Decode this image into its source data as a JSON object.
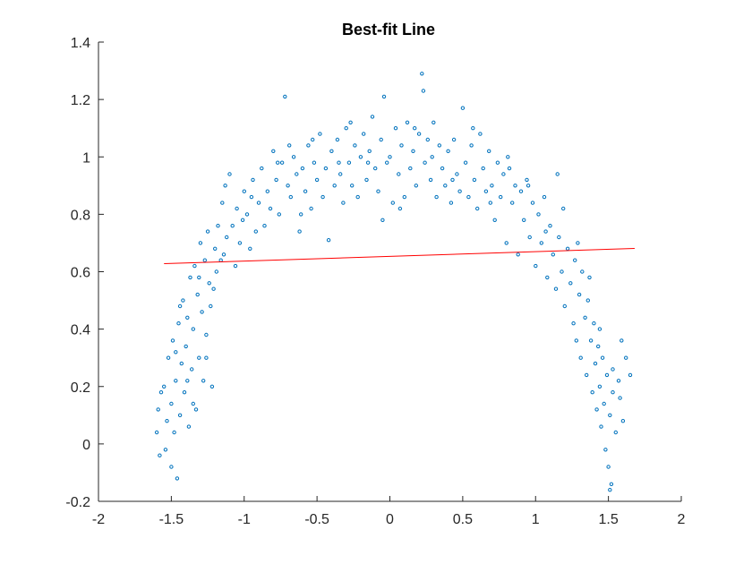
{
  "chart_data": {
    "type": "scatter",
    "title": "Best-fit Line",
    "xlabel": "",
    "ylabel": "",
    "xlim": [
      -2,
      2
    ],
    "ylim": [
      -0.2,
      1.4
    ],
    "x_ticks": [
      -2,
      -1.5,
      -1,
      -0.5,
      0,
      0.5,
      1,
      1.5,
      2
    ],
    "x_tick_labels": [
      "-2",
      "-1.5",
      "-1",
      "-0.5",
      "0",
      "0.5",
      "1",
      "1.5",
      "2"
    ],
    "y_ticks": [
      -0.2,
      0,
      0.2,
      0.4,
      0.6,
      0.8,
      1,
      1.2,
      1.4
    ],
    "y_tick_labels": [
      "-0.2",
      "0",
      "0.2",
      "0.4",
      "0.6",
      "0.8",
      "1",
      "1.2",
      "1.4"
    ],
    "grid": false,
    "legend": "none",
    "scatter_color": "#0072BD",
    "line_color": "#FF0000",
    "series": [
      {
        "type": "scatter",
        "points": [
          [
            -1.6,
            0.04
          ],
          [
            -1.59,
            0.12
          ],
          [
            -1.58,
            -0.04
          ],
          [
            -1.55,
            0.2
          ],
          [
            -1.53,
            0.08
          ],
          [
            -1.52,
            0.3
          ],
          [
            -1.5,
            -0.08
          ],
          [
            -1.5,
            0.14
          ],
          [
            -1.49,
            0.36
          ],
          [
            -1.48,
            0.04
          ],
          [
            -1.47,
            0.22
          ],
          [
            -1.46,
            -0.12
          ],
          [
            -1.45,
            0.42
          ],
          [
            -1.44,
            0.1
          ],
          [
            -1.43,
            0.28
          ],
          [
            -1.42,
            0.5
          ],
          [
            -1.41,
            0.18
          ],
          [
            -1.4,
            0.34
          ],
          [
            -1.39,
            0.44
          ],
          [
            -1.38,
            0.06
          ],
          [
            -1.37,
            0.58
          ],
          [
            -1.36,
            0.26
          ],
          [
            -1.35,
            0.4
          ],
          [
            -1.34,
            0.62
          ],
          [
            -1.33,
            0.12
          ],
          [
            -1.32,
            0.52
          ],
          [
            -1.31,
            0.3
          ],
          [
            -1.3,
            0.7
          ],
          [
            -1.29,
            0.46
          ],
          [
            -1.28,
            0.22
          ],
          [
            -1.27,
            0.64
          ],
          [
            -1.26,
            0.38
          ],
          [
            -1.25,
            0.74
          ],
          [
            -1.24,
            0.56
          ],
          [
            -1.23,
            0.48
          ],
          [
            -1.22,
            0.2
          ],
          [
            -1.2,
            0.68
          ],
          [
            -1.19,
            0.6
          ],
          [
            -1.18,
            0.76
          ],
          [
            -1.16,
            0.64
          ],
          [
            -1.15,
            0.84
          ],
          [
            -1.14,
            0.66
          ],
          [
            -1.12,
            0.72
          ],
          [
            -1.1,
            0.94
          ],
          [
            -1.08,
            0.76
          ],
          [
            -1.06,
            0.62
          ],
          [
            -1.05,
            0.82
          ],
          [
            -1.03,
            0.7
          ],
          [
            -1.01,
            0.78
          ],
          [
            -1.0,
            0.88
          ],
          [
            -0.98,
            0.8
          ],
          [
            -0.96,
            0.68
          ],
          [
            -0.94,
            0.92
          ],
          [
            -0.92,
            0.74
          ],
          [
            -0.9,
            0.84
          ],
          [
            -0.88,
            0.96
          ],
          [
            -0.86,
            0.76
          ],
          [
            -0.84,
            0.88
          ],
          [
            -0.82,
            0.82
          ],
          [
            -0.8,
            1.02
          ],
          [
            -0.78,
            0.92
          ],
          [
            -0.76,
            0.8
          ],
          [
            -0.74,
            0.98
          ],
          [
            -0.72,
            1.21
          ],
          [
            -0.7,
            0.9
          ],
          [
            -0.68,
            0.86
          ],
          [
            -0.66,
            1.0
          ],
          [
            -0.64,
            0.94
          ],
          [
            -0.62,
            0.74
          ],
          [
            -0.6,
            0.96
          ],
          [
            -0.58,
            0.88
          ],
          [
            -0.56,
            1.04
          ],
          [
            -0.54,
            0.82
          ],
          [
            -0.52,
            0.98
          ],
          [
            -0.5,
            0.92
          ],
          [
            -0.48,
            1.08
          ],
          [
            -0.46,
            0.86
          ],
          [
            -0.44,
            0.96
          ],
          [
            -0.42,
            0.71
          ],
          [
            -0.4,
            1.02
          ],
          [
            -0.38,
            0.9
          ],
          [
            -0.36,
            1.06
          ],
          [
            -0.34,
            0.94
          ],
          [
            -0.32,
            0.84
          ],
          [
            -0.3,
            1.1
          ],
          [
            -0.28,
            0.98
          ],
          [
            -0.26,
            0.9
          ],
          [
            -0.24,
            1.04
          ],
          [
            -0.22,
            0.86
          ],
          [
            -0.2,
            1.0
          ],
          [
            -0.18,
            1.08
          ],
          [
            -0.16,
            0.92
          ],
          [
            -0.14,
            1.02
          ],
          [
            -0.12,
            1.14
          ],
          [
            -0.1,
            0.96
          ],
          [
            -0.08,
            0.88
          ],
          [
            -0.06,
            1.06
          ],
          [
            -0.04,
            1.21
          ],
          [
            -0.02,
            0.98
          ],
          [
            0.0,
            1.0
          ],
          [
            0.02,
            0.84
          ],
          [
            0.04,
            1.1
          ],
          [
            0.06,
            0.94
          ],
          [
            0.08,
            1.04
          ],
          [
            0.1,
            0.86
          ],
          [
            0.12,
            1.12
          ],
          [
            0.14,
            0.96
          ],
          [
            0.16,
            1.02
          ],
          [
            0.18,
            0.9
          ],
          [
            0.2,
            1.08
          ],
          [
            0.22,
            1.29
          ],
          [
            0.23,
            1.23
          ],
          [
            0.24,
            0.98
          ],
          [
            0.26,
            1.06
          ],
          [
            0.28,
            0.92
          ],
          [
            0.3,
            1.12
          ],
          [
            0.32,
            0.86
          ],
          [
            0.34,
            1.04
          ],
          [
            0.36,
            0.96
          ],
          [
            0.38,
            0.9
          ],
          [
            0.4,
            1.02
          ],
          [
            0.42,
            0.84
          ],
          [
            0.44,
            1.06
          ],
          [
            0.46,
            0.94
          ],
          [
            0.48,
            0.88
          ],
          [
            0.5,
            1.17
          ],
          [
            0.52,
            0.98
          ],
          [
            0.54,
            0.86
          ],
          [
            0.56,
            1.04
          ],
          [
            0.58,
            0.92
          ],
          [
            0.6,
            0.82
          ],
          [
            0.62,
            1.08
          ],
          [
            0.64,
            0.96
          ],
          [
            0.66,
            0.88
          ],
          [
            0.68,
            1.02
          ],
          [
            0.7,
            0.9
          ],
          [
            0.72,
            0.78
          ],
          [
            0.74,
            0.98
          ],
          [
            0.76,
            0.86
          ],
          [
            0.78,
            0.94
          ],
          [
            0.8,
            0.7
          ],
          [
            0.82,
            0.96
          ],
          [
            0.84,
            0.84
          ],
          [
            0.86,
            0.9
          ],
          [
            0.88,
            0.66
          ],
          [
            0.9,
            0.88
          ],
          [
            0.92,
            0.78
          ],
          [
            0.94,
            0.92
          ],
          [
            0.96,
            0.72
          ],
          [
            0.98,
            0.84
          ],
          [
            1.0,
            0.62
          ],
          [
            1.02,
            0.8
          ],
          [
            1.04,
            0.7
          ],
          [
            1.06,
            0.86
          ],
          [
            1.08,
            0.58
          ],
          [
            1.1,
            0.76
          ],
          [
            1.12,
            0.66
          ],
          [
            1.14,
            0.54
          ],
          [
            1.15,
            0.94
          ],
          [
            1.16,
            0.72
          ],
          [
            1.18,
            0.6
          ],
          [
            1.2,
            0.48
          ],
          [
            1.22,
            0.68
          ],
          [
            1.24,
            0.56
          ],
          [
            1.26,
            0.42
          ],
          [
            1.27,
            0.64
          ],
          [
            1.28,
            0.36
          ],
          [
            1.3,
            0.52
          ],
          [
            1.31,
            0.3
          ],
          [
            1.32,
            0.6
          ],
          [
            1.34,
            0.44
          ],
          [
            1.35,
            0.24
          ],
          [
            1.36,
            0.5
          ],
          [
            1.38,
            0.36
          ],
          [
            1.39,
            0.18
          ],
          [
            1.4,
            0.42
          ],
          [
            1.41,
            0.28
          ],
          [
            1.42,
            0.12
          ],
          [
            1.43,
            0.34
          ],
          [
            1.44,
            0.2
          ],
          [
            1.45,
            0.06
          ],
          [
            1.46,
            0.3
          ],
          [
            1.47,
            0.14
          ],
          [
            1.48,
            -0.02
          ],
          [
            1.49,
            0.24
          ],
          [
            1.5,
            -0.08
          ],
          [
            1.51,
            0.1
          ],
          [
            1.52,
            -0.14
          ],
          [
            1.53,
            0.18
          ],
          [
            1.55,
            0.04
          ],
          [
            1.57,
            0.22
          ],
          [
            1.59,
            0.36
          ],
          [
            1.6,
            0.08
          ],
          [
            1.62,
            0.3
          ],
          [
            1.65,
            0.24
          ],
          [
            -1.57,
            0.18
          ],
          [
            -1.54,
            -0.02
          ],
          [
            -1.47,
            0.32
          ],
          [
            -1.44,
            0.48
          ],
          [
            -1.39,
            0.22
          ],
          [
            -1.35,
            0.14
          ],
          [
            -1.31,
            0.58
          ],
          [
            -1.26,
            0.3
          ],
          [
            -1.21,
            0.54
          ],
          [
            -1.13,
            0.9
          ],
          [
            -0.95,
            0.86
          ],
          [
            -0.77,
            0.98
          ],
          [
            -0.69,
            1.04
          ],
          [
            -0.61,
            0.8
          ],
          [
            -0.53,
            1.06
          ],
          [
            -0.35,
            0.98
          ],
          [
            -0.27,
            1.12
          ],
          [
            -0.15,
            0.98
          ],
          [
            -0.05,
            0.78
          ],
          [
            0.07,
            0.82
          ],
          [
            0.17,
            1.1
          ],
          [
            0.29,
            1.0
          ],
          [
            0.43,
            0.92
          ],
          [
            0.57,
            1.1
          ],
          [
            0.69,
            0.84
          ],
          [
            0.81,
            1.0
          ],
          [
            0.95,
            0.9
          ],
          [
            1.07,
            0.74
          ],
          [
            1.19,
            0.82
          ],
          [
            1.29,
            0.7
          ],
          [
            1.37,
            0.58
          ],
          [
            1.44,
            0.4
          ],
          [
            1.53,
            0.26
          ],
          [
            1.58,
            0.16
          ],
          [
            1.51,
            -0.16
          ]
        ]
      },
      {
        "type": "line",
        "points": [
          [
            -1.55,
            0.628
          ],
          [
            1.68,
            0.681
          ]
        ]
      }
    ]
  }
}
